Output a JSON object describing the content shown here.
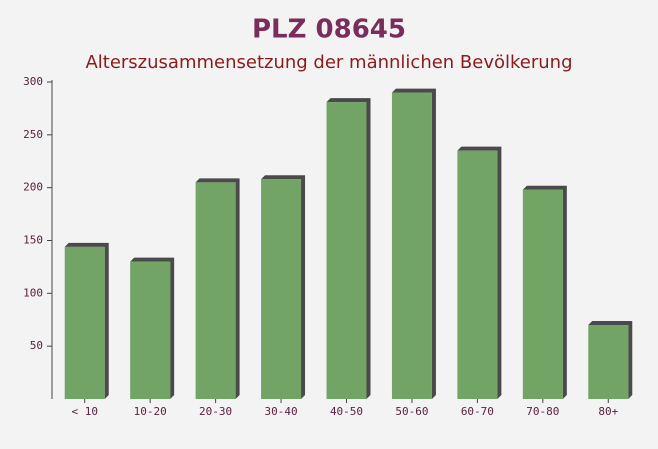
{
  "chart_data": {
    "type": "bar",
    "title": "PLZ 08645",
    "subtitle": "Alterszusammensetzung der männlichen Bevölkerung",
    "categories": [
      "< 10",
      "10-20",
      "20-30",
      "30-40",
      "40-50",
      "50-60",
      "60-70",
      "70-80",
      "80+"
    ],
    "values": [
      144,
      130,
      205,
      208,
      281,
      290,
      235,
      198,
      70
    ],
    "color": "#6a9f5e",
    "ylim": [
      0,
      300
    ],
    "yticks": [
      50,
      100,
      150,
      200,
      250,
      300
    ]
  }
}
